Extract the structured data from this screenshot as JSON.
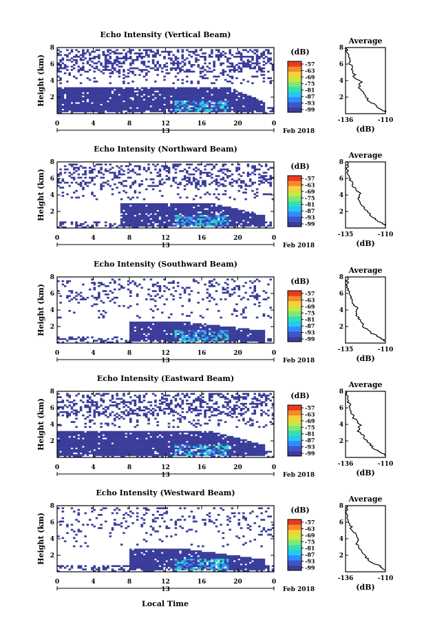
{
  "chart_data": {
    "type": "heatmap",
    "colormap": [
      "#3b3d9a",
      "#3f55c8",
      "#2f8cff",
      "#28c8f0",
      "#34e0b4",
      "#7fe874",
      "#c9e843",
      "#f8d03b",
      "#f68a2a",
      "#e83b1e"
    ],
    "panels": [
      {
        "title": "Echo Intensity (Vertical Beam)",
        "ylabel": "Height (km)",
        "xticks": [
          "0",
          "4",
          "8",
          "12",
          "16",
          "20",
          "0"
        ],
        "date_label": "Feb 2018",
        "date_tick": "13",
        "ylim": [
          0,
          8
        ],
        "yticks": [
          "2",
          "4",
          "6",
          "8"
        ],
        "xlim": [
          0,
          24
        ],
        "colorbar_label": "(dB)",
        "colorbar_ticks": [
          "-57",
          "-63",
          "-69",
          "-75",
          "-81",
          "-87",
          "-93",
          "-99"
        ],
        "avg_title": "Average",
        "avg_xlabel": "(dB)",
        "avg_xticks": [
          "-136",
          "-110"
        ],
        "avg_yticks": [
          "2",
          "4",
          "6",
          "8"
        ],
        "avg_profile": [
          [
            -110,
            0.2
          ],
          [
            -113,
            0.6
          ],
          [
            -118,
            1.2
          ],
          [
            -122,
            1.8
          ],
          [
            -125,
            2.6
          ],
          [
            -127,
            3.2
          ],
          [
            -126,
            3.8
          ],
          [
            -130,
            4.4
          ],
          [
            -131,
            5.2
          ],
          [
            -133,
            6.0
          ],
          [
            -134,
            6.8
          ],
          [
            -135,
            7.6
          ],
          [
            -135.5,
            8.0
          ]
        ],
        "layer_low": 0.2,
        "layer_high": 3.2,
        "layer_start": 0,
        "layer_end": 19,
        "layer_tail": 23,
        "tail_top": 1.4,
        "upper_density": 0.45,
        "seed": 11
      },
      {
        "title": "Echo Intensity (Northward Beam)",
        "ylabel": "Height (km)",
        "xticks": [
          "0",
          "4",
          "8",
          "12",
          "16",
          "20",
          "0"
        ],
        "date_label": "Feb 2018",
        "date_tick": "13",
        "ylim": [
          0,
          8
        ],
        "yticks": [
          "2",
          "4",
          "6",
          "8"
        ],
        "xlim": [
          0,
          24
        ],
        "colorbar_label": "(dB)",
        "colorbar_ticks": [
          "-57",
          "-63",
          "-69",
          "-75",
          "-81",
          "-87",
          "-93",
          "-99"
        ],
        "avg_title": "Average",
        "avg_xlabel": "(dB)",
        "avg_xticks": [
          "-135",
          "-110"
        ],
        "avg_yticks": [
          "2",
          "4",
          "6",
          "8"
        ],
        "avg_profile": [
          [
            -110,
            0.3
          ],
          [
            -114,
            0.8
          ],
          [
            -119,
            1.4
          ],
          [
            -123,
            2.2
          ],
          [
            -126,
            3.0
          ],
          [
            -128,
            3.6
          ],
          [
            -127,
            4.2
          ],
          [
            -131,
            5.0
          ],
          [
            -133,
            5.8
          ],
          [
            -134,
            6.6
          ],
          [
            -135,
            7.4
          ],
          [
            -135,
            8.0
          ]
        ],
        "layer_low": 0.2,
        "layer_high": 3.0,
        "layer_start": 7,
        "layer_end": 17,
        "layer_tail": 23,
        "tail_top": 1.6,
        "upper_density": 0.3,
        "seed": 23
      },
      {
        "title": "Echo Intensity (Southward Beam)",
        "ylabel": "Height (km)",
        "xticks": [
          "0",
          "4",
          "8",
          "12",
          "16",
          "20",
          "0"
        ],
        "date_label": "Feb 2018",
        "date_tick": "13",
        "ylim": [
          0,
          8
        ],
        "yticks": [
          "2",
          "4",
          "6",
          "8"
        ],
        "xlim": [
          0,
          24
        ],
        "colorbar_label": "(dB)",
        "colorbar_ticks": [
          "-57",
          "-63",
          "-69",
          "-75",
          "-81",
          "-87",
          "-93",
          "-99"
        ],
        "avg_title": "Average",
        "avg_xlabel": "(dB)",
        "avg_xticks": [
          "-135",
          "-110"
        ],
        "avg_yticks": [
          "2",
          "4",
          "6",
          "8"
        ],
        "avg_profile": [
          [
            -110,
            0.2
          ],
          [
            -114,
            0.7
          ],
          [
            -120,
            1.3
          ],
          [
            -124,
            2.0
          ],
          [
            -127,
            2.8
          ],
          [
            -129,
            3.5
          ],
          [
            -128,
            4.1
          ],
          [
            -131,
            4.8
          ],
          [
            -132,
            5.6
          ],
          [
            -134,
            6.4
          ],
          [
            -135,
            7.2
          ],
          [
            -135,
            8.0
          ]
        ],
        "layer_low": 0.2,
        "layer_high": 2.6,
        "layer_start": 8,
        "layer_end": 14,
        "layer_tail": 23,
        "tail_top": 1.5,
        "upper_density": 0.18,
        "seed": 37
      },
      {
        "title": "Echo Intensity (Eastward Beam)",
        "ylabel": "Height (km)",
        "xticks": [
          "0",
          "4",
          "8",
          "12",
          "16",
          "20",
          "0"
        ],
        "date_label": "Feb 2018",
        "date_tick": "13",
        "ylim": [
          0,
          8
        ],
        "yticks": [
          "2",
          "4",
          "6",
          "8"
        ],
        "xlim": [
          0,
          24
        ],
        "colorbar_label": "(dB)",
        "colorbar_ticks": [
          "-57",
          "-63",
          "-69",
          "-75",
          "-81",
          "-87",
          "-93",
          "-99"
        ],
        "avg_title": "Average",
        "avg_xlabel": "(dB)",
        "avg_xticks": [
          "-136",
          "-110"
        ],
        "avg_yticks": [
          "2",
          "4",
          "6",
          "8"
        ],
        "avg_profile": [
          [
            -110,
            0.2
          ],
          [
            -113,
            0.6
          ],
          [
            -118,
            1.2
          ],
          [
            -122,
            1.9
          ],
          [
            -125,
            2.7
          ],
          [
            -128,
            3.3
          ],
          [
            -126,
            3.9
          ],
          [
            -130,
            4.6
          ],
          [
            -132,
            5.4
          ],
          [
            -133,
            6.2
          ],
          [
            -135,
            7.0
          ],
          [
            -135.5,
            8.0
          ]
        ],
        "layer_low": 0.2,
        "layer_high": 3.2,
        "layer_start": 0,
        "layer_end": 17,
        "layer_tail": 23,
        "tail_top": 1.5,
        "upper_density": 0.42,
        "seed": 53
      },
      {
        "title": "Echo Intensity (Westward Beam)",
        "ylabel": "Height (km)",
        "xticks": [
          "0",
          "4",
          "8",
          "12",
          "16",
          "20",
          "0"
        ],
        "date_label": "Feb 2018",
        "date_tick": "13",
        "ylim": [
          0,
          8
        ],
        "yticks": [
          "2",
          "4",
          "6",
          "8"
        ],
        "xlim": [
          0,
          24
        ],
        "colorbar_label": "(dB)",
        "colorbar_ticks": [
          "-57",
          "-63",
          "-69",
          "-75",
          "-81",
          "-87",
          "-93",
          "-99"
        ],
        "avg_title": "Average",
        "avg_xlabel": "(dB)",
        "avg_xticks": [
          "-136",
          "-110"
        ],
        "avg_yticks": [
          "2",
          "4",
          "6",
          "8"
        ],
        "avg_profile": [
          [
            -110,
            0.2
          ],
          [
            -114,
            0.7
          ],
          [
            -120,
            1.3
          ],
          [
            -124,
            2.0
          ],
          [
            -127,
            2.8
          ],
          [
            -129,
            3.5
          ],
          [
            -127,
            4.0
          ],
          [
            -131,
            4.8
          ],
          [
            -133,
            5.6
          ],
          [
            -134,
            6.4
          ],
          [
            -135,
            7.2
          ],
          [
            -135.5,
            8.0
          ]
        ],
        "layer_low": 0.2,
        "layer_high": 2.8,
        "layer_start": 8,
        "layer_end": 14,
        "layer_tail": 23,
        "tail_top": 1.5,
        "upper_density": 0.16,
        "seed": 71
      }
    ],
    "xlabel": "Local Time"
  }
}
